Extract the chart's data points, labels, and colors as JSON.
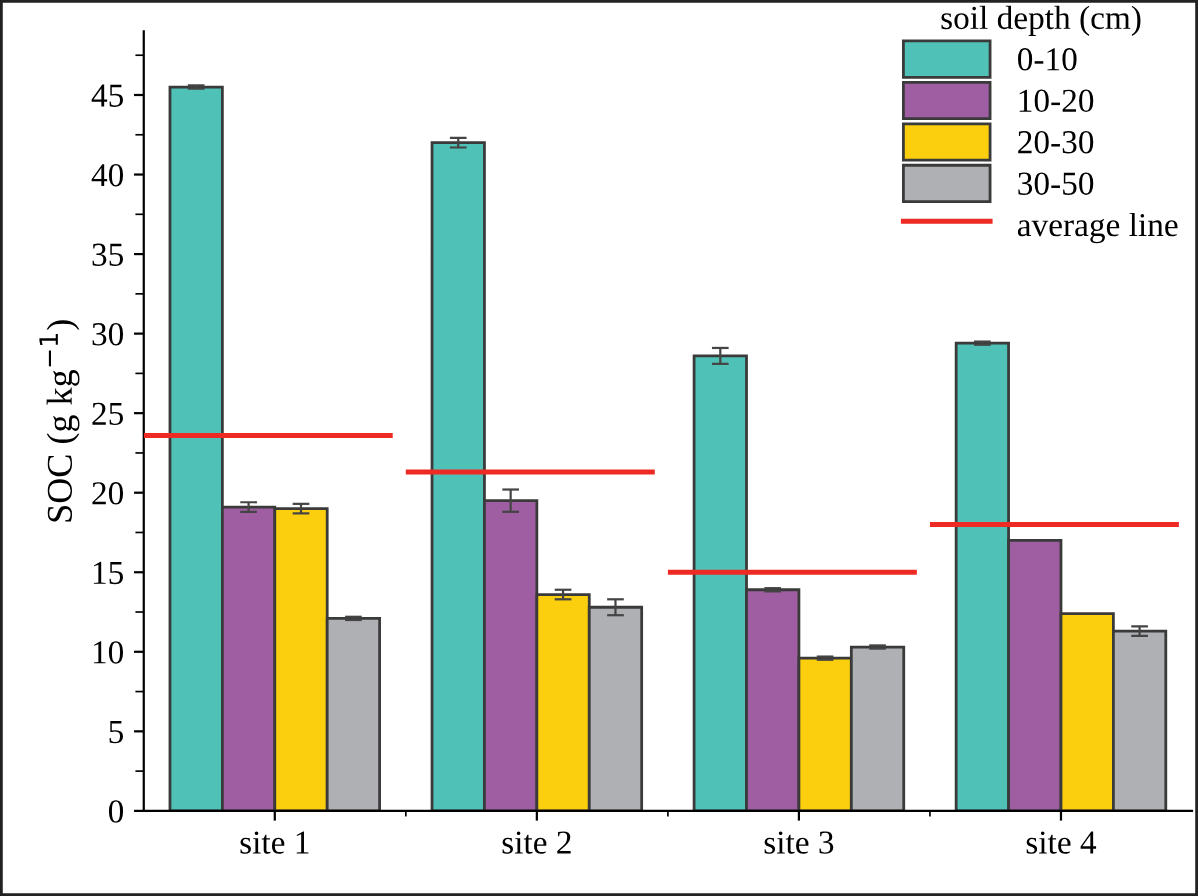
{
  "chart_data": {
    "type": "bar",
    "ylabel": "SOC (g kg$^{−1}$)",
    "legend_title": "soil depth (cm)",
    "legend": "top right",
    "categories": [
      "site 1",
      "site 2",
      "site 3",
      "site 4"
    ],
    "series": [
      {
        "name": "0-10",
        "color": "#4fc1b7",
        "values": [
          45.5,
          42.0,
          28.6,
          29.4
        ],
        "errors": [
          0.1,
          0.3,
          0.5,
          0.1
        ]
      },
      {
        "name": "10-20",
        "color": "#a05ea2",
        "values": [
          19.1,
          19.5,
          13.9,
          17.0
        ],
        "errors": [
          0.3,
          0.7,
          0.1,
          null
        ]
      },
      {
        "name": "20-30",
        "color": "#fbcf0e",
        "values": [
          19.0,
          13.6,
          9.6,
          12.4
        ],
        "errors": [
          0.3,
          0.3,
          0.1,
          null
        ]
      },
      {
        "name": "30-50",
        "color": "#aeb0b3",
        "values": [
          12.1,
          12.8,
          10.3,
          11.3
        ],
        "errors": [
          0.1,
          0.5,
          0.1,
          0.3
        ]
      }
    ],
    "ref_lines": [
      {
        "axis": "y",
        "value": 23.6,
        "label": "average line",
        "color": "#ee2a24"
      },
      {
        "axis": "y",
        "value": 21.3,
        "color": "#ee2a24"
      },
      {
        "axis": "y",
        "value": 15.0,
        "color": "#ee2a24"
      },
      {
        "axis": "y",
        "value": 18.0,
        "color": "#ee2a24"
      }
    ],
    "ylim": [
      0,
      49
    ],
    "yticks": [
      0,
      5,
      10,
      15,
      20,
      25,
      30,
      35,
      40,
      45
    ],
    "grid": false
  }
}
